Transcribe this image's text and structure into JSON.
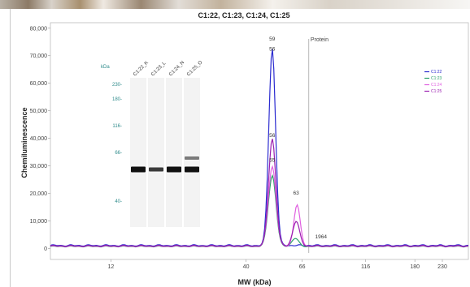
{
  "chart_data": {
    "type": "line",
    "title": "C1:22, C1:23, C1:24, C1:25",
    "xlabel": "MW (kDa)",
    "ylabel": "Chemiluminescence",
    "x_scale": "log",
    "xlim": [
      7,
      290
    ],
    "ylim": [
      -4000,
      82000
    ],
    "x_ticks": [
      12,
      40,
      66,
      116,
      180,
      230
    ],
    "y_ticks": [
      0,
      10000,
      20000,
      30000,
      40000,
      50000,
      60000,
      70000,
      80000
    ],
    "y_tick_labels": [
      "0",
      "10,000",
      "20,000",
      "30,000",
      "40,000",
      "50,000",
      "60,000",
      "70,000",
      "80,000"
    ],
    "legend_position": "top-right",
    "series": [
      {
        "name": "C1:22",
        "color": "#2b2bd0",
        "baseline": 1200,
        "peaks": [
          [
            50.5,
            71500,
            0.03
          ]
        ]
      },
      {
        "name": "C1:23",
        "color": "#2aa068",
        "baseline": 800,
        "peaks": [
          [
            50.5,
            25800,
            0.034
          ],
          [
            62,
            3000,
            0.03
          ]
        ]
      },
      {
        "name": "C1:24",
        "color": "#e060e0",
        "baseline": 900,
        "peaks": [
          [
            50.5,
            29000,
            0.034
          ],
          [
            63,
            15000,
            0.028
          ]
        ]
      },
      {
        "name": "C1:25",
        "color": "#9b1fb0",
        "baseline": 1000,
        "peaks": [
          [
            50.5,
            39000,
            0.032
          ],
          [
            62.5,
            9000,
            0.03
          ]
        ]
      }
    ],
    "annotations": [
      {
        "text": "59",
        "x": 50.5,
        "y": 75500
      },
      {
        "text": "56",
        "x": 50.5,
        "y": 71800
      },
      {
        "text": "56",
        "x": 50.5,
        "y": 40500
      },
      {
        "text": "55",
        "x": 50.5,
        "y": 31500
      },
      {
        "text": "63",
        "x": 62.5,
        "y": 19500
      },
      {
        "text": "1964",
        "x": 78,
        "y": 3600
      }
    ],
    "marker_line": {
      "label": "Protein",
      "x": 70
    }
  },
  "lane_view": {
    "unit_label": "kDa",
    "ladder": [
      "230",
      "180",
      "116",
      "66",
      "40"
    ],
    "lanes": [
      "C1:22_K",
      "C1:23_L",
      "C1:24_N",
      "C1:25_O"
    ]
  }
}
